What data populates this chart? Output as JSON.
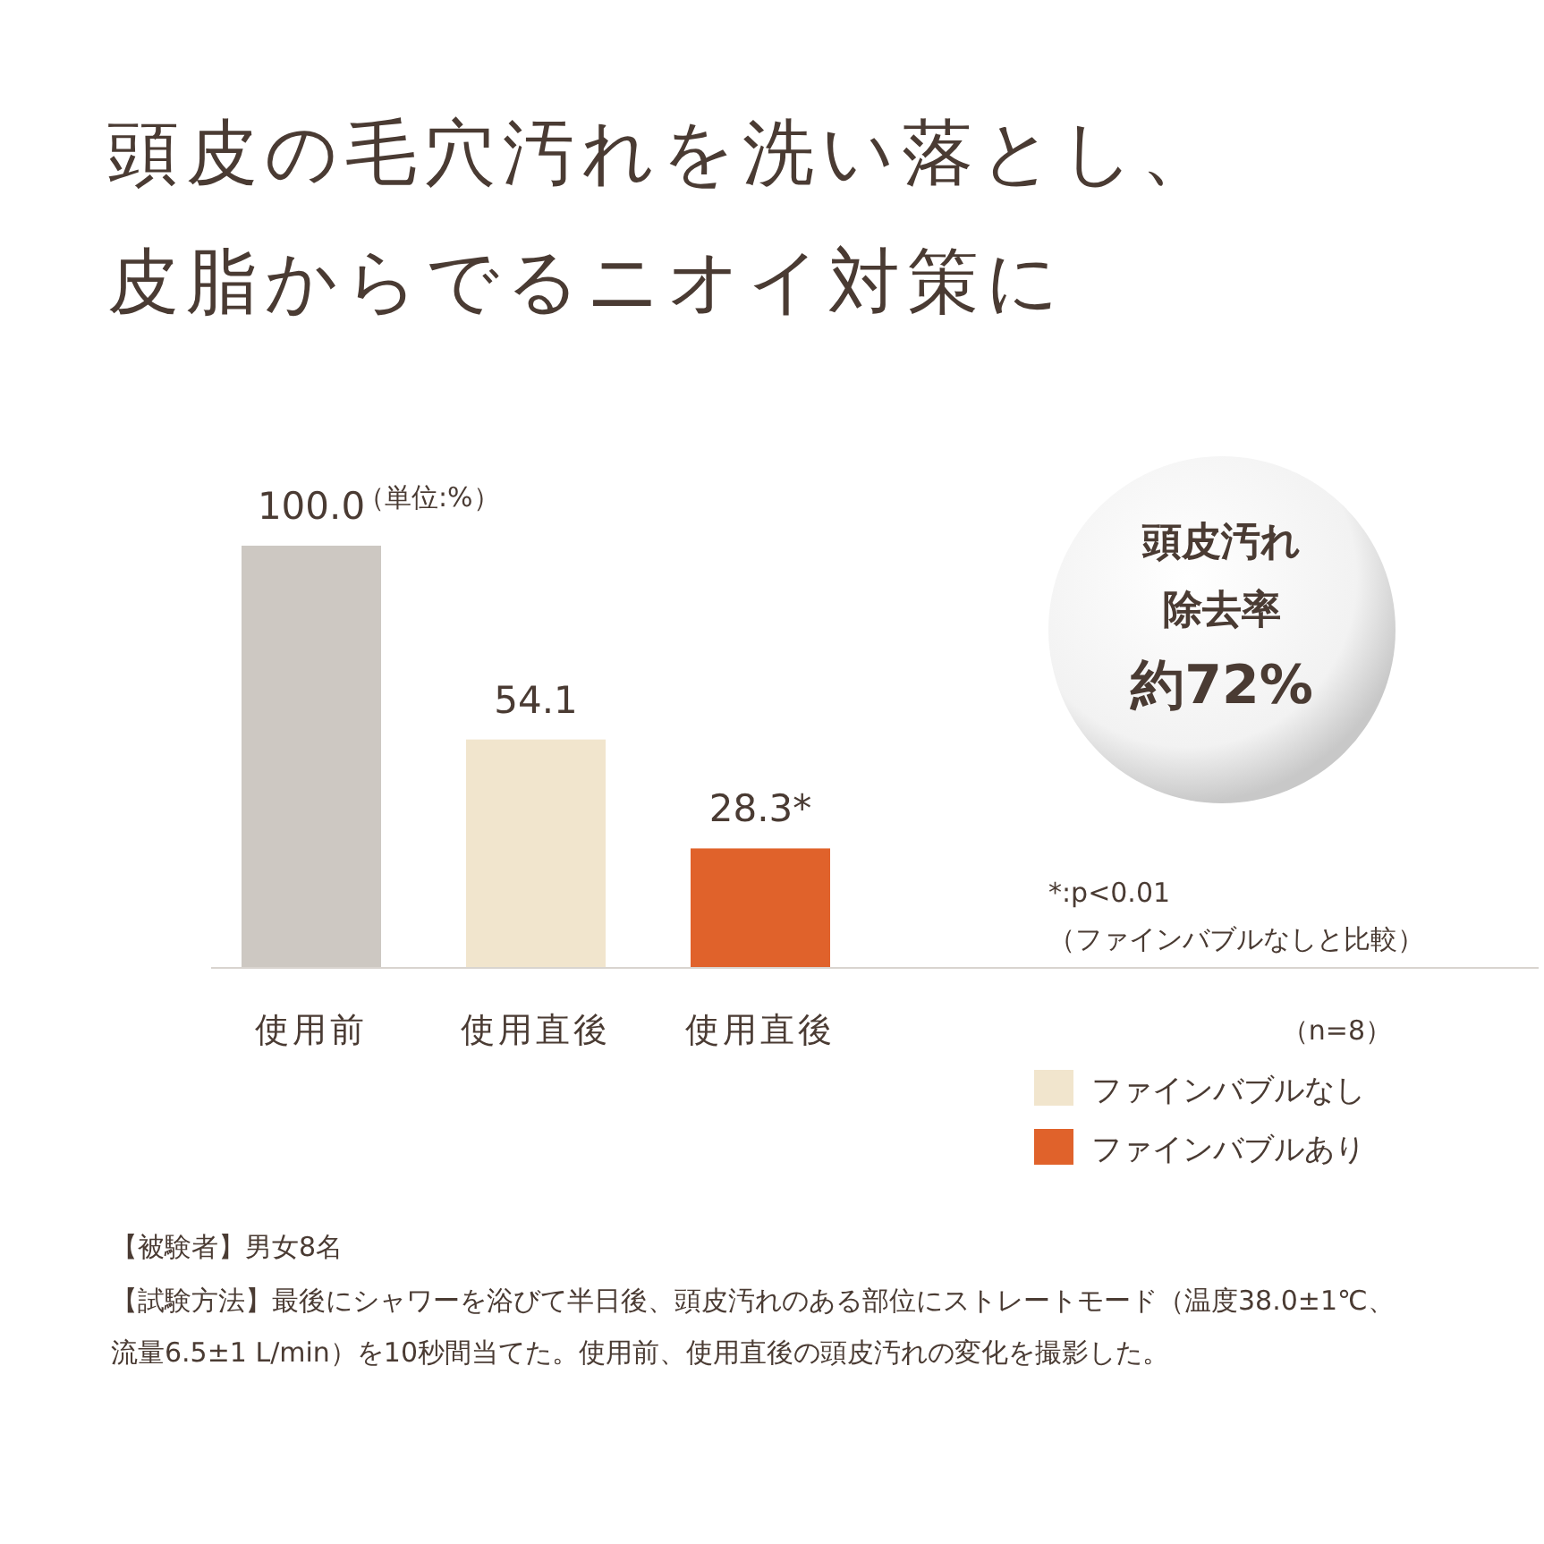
{
  "chart_data": {
    "type": "bar",
    "title": "頭皮の毛穴汚れを洗い落とし、皮脂からでるニオイ対策に",
    "categories": [
      "使用前",
      "使用直後",
      "使用直後"
    ],
    "series": [
      {
        "color": "#cdc8c2",
        "values": [
          100.0,
          null,
          null
        ],
        "value_labels": [
          "100.0",
          null,
          null
        ]
      },
      {
        "name": "ファインバブルなし",
        "color": "#f1e5cd",
        "values": [
          null,
          54.1,
          null
        ],
        "value_labels": [
          null,
          "54.1",
          null
        ]
      },
      {
        "name": "ファインバブルあり",
        "color": "#e0622b",
        "values": [
          null,
          null,
          28.3
        ],
        "value_labels": [
          null,
          null,
          "28.3*"
        ]
      }
    ],
    "legend": "bottom right",
    "annotations": [
      "（単位:%）",
      "頭皮汚れ除去率",
      "約72%",
      "*:p<0.01\n（ファインバブルなしと比較）",
      "（n=8）",
      "【被験者】男女8名",
      "【試験方法】最後にシャワーを浴びて半日後、頭皮汚れのある部位にストレートモード（温度38.0±1℃、流量6.5±1 L/min）を10秒間当てた。使用前、使用直後の頭皮汚れの変化を撮影した。"
    ]
  }
}
